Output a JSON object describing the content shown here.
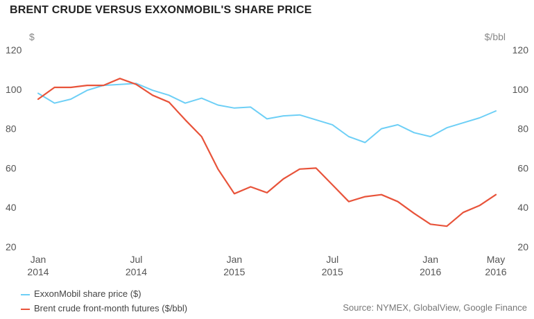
{
  "chart_data": {
    "type": "line",
    "title": "BRENT CRUDE VERSUS EXXONMOBIL'S SHARE PRICE",
    "left_axis": {
      "unit": "$",
      "ylim": [
        20,
        120
      ],
      "ticks": [
        "20",
        "40",
        "60",
        "80",
        "100",
        "120"
      ]
    },
    "right_axis": {
      "unit": "$/bbl",
      "ylim": [
        20,
        120
      ],
      "ticks": [
        "20",
        "40",
        "60",
        "80",
        "100",
        "120"
      ]
    },
    "x_ticks": [
      {
        "month": "Jan",
        "year": "2014",
        "idx": 0
      },
      {
        "month": "Jul",
        "year": "2014",
        "idx": 6
      },
      {
        "month": "Jan",
        "year": "2015",
        "idx": 12
      },
      {
        "month": "Jul",
        "year": "2015",
        "idx": 18
      },
      {
        "month": "Jan",
        "year": "2016",
        "idx": 24
      },
      {
        "month": "May",
        "year": "2016",
        "idx": 28
      }
    ],
    "x": [
      "2014-01",
      "2014-02",
      "2014-03",
      "2014-04",
      "2014-05",
      "2014-06",
      "2014-07",
      "2014-08",
      "2014-09",
      "2014-10",
      "2014-11",
      "2014-12",
      "2015-01",
      "2015-02",
      "2015-03",
      "2015-04",
      "2015-05",
      "2015-06",
      "2015-07",
      "2015-08",
      "2015-09",
      "2015-10",
      "2015-11",
      "2015-12",
      "2016-01",
      "2016-02",
      "2016-03",
      "2016-04",
      "2016-05"
    ],
    "series": [
      {
        "name": "ExxonMobil share price ($)",
        "axis": "left",
        "color": "#6dcff6",
        "values": [
          98,
          93,
          95,
          99.5,
          102,
          102.5,
          103,
          99.5,
          97,
          93,
          95.5,
          92,
          90.5,
          91,
          85,
          86.5,
          87,
          84.5,
          82,
          76,
          73,
          80,
          82,
          78,
          76,
          80.5,
          83,
          85.5,
          89
        ]
      },
      {
        "name": "Brent crude front-month futures ($/bbl)",
        "axis": "right",
        "color": "#e8533a",
        "values": [
          95,
          101,
          101,
          102,
          102,
          105.5,
          102.5,
          97,
          93.5,
          84.5,
          76,
          59.5,
          47,
          50.5,
          47.5,
          54.5,
          59.5,
          60,
          51.5,
          43,
          45.5,
          46.5,
          43,
          37,
          31.5,
          30.5,
          37.5,
          41,
          46.5
        ]
      }
    ],
    "grid": false,
    "legend_position": "bottom-left"
  },
  "source": "Source: NYMEX, GlobalView, Google Finance"
}
